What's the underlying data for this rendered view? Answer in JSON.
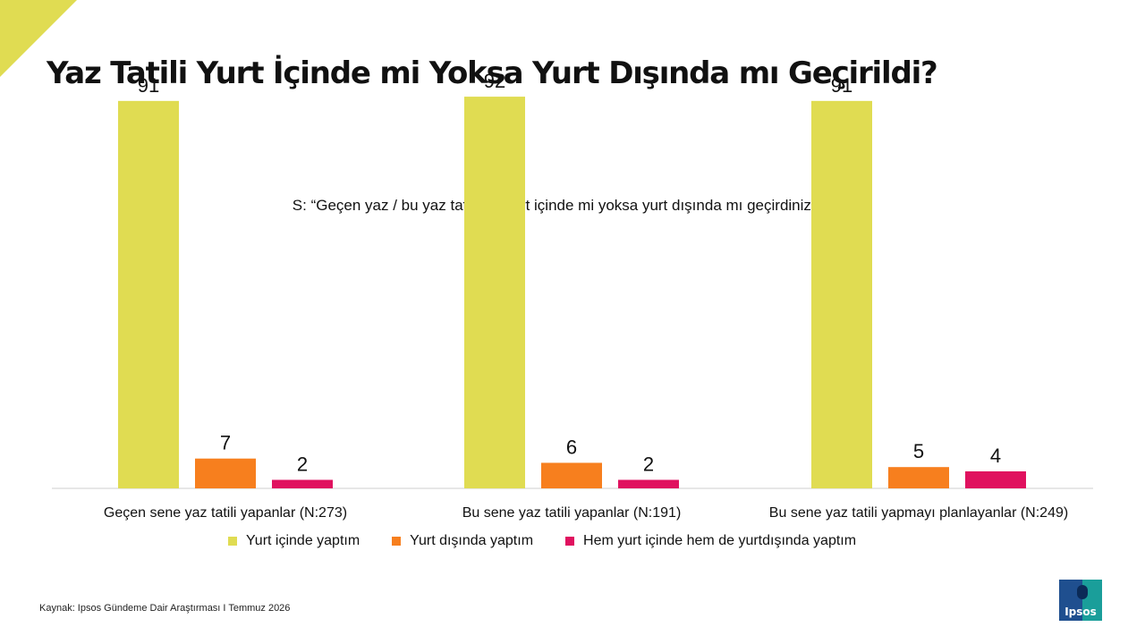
{
  "title": "Yaz Tatili Yurt İçinde mi Yoksa Yurt Dışında mı Geçirildi?",
  "question": "S: “Geçen yaz / bu yaz tatilinizi yurt içinde mi yoksa yurt dışında mı geçirdiniz?” (%)",
  "source": "Kaynak: Ipsos Gündeme Dair Araştırması I Temmuz 2026",
  "logo": {
    "text": "Ipsos"
  },
  "colors": {
    "accent": "#e0dc52",
    "domestic": "#e0dc52",
    "abroad": "#f77f1e",
    "both": "#e0115f"
  },
  "chart_data": {
    "type": "bar",
    "categories": [
      "Geçen sene yaz tatili yapanlar (N:273)",
      "Bu sene yaz tatili yapanlar (N:191)",
      "Bu sene yaz tatili yapmayı planlayanlar (N:249)"
    ],
    "series": [
      {
        "name": "Yurt içinde yaptım",
        "color": "#e0dc52",
        "values": [
          91,
          92,
          91
        ]
      },
      {
        "name": "Yurt dışında yaptım",
        "color": "#f77f1e",
        "values": [
          7,
          6,
          5
        ]
      },
      {
        "name": "Hem yurt içinde hem de yurtdışında yaptım",
        "color": "#e0115f",
        "values": [
          2,
          2,
          4
        ]
      }
    ],
    "ylim": [
      0,
      100
    ],
    "legend": "bottom",
    "grid": false
  }
}
